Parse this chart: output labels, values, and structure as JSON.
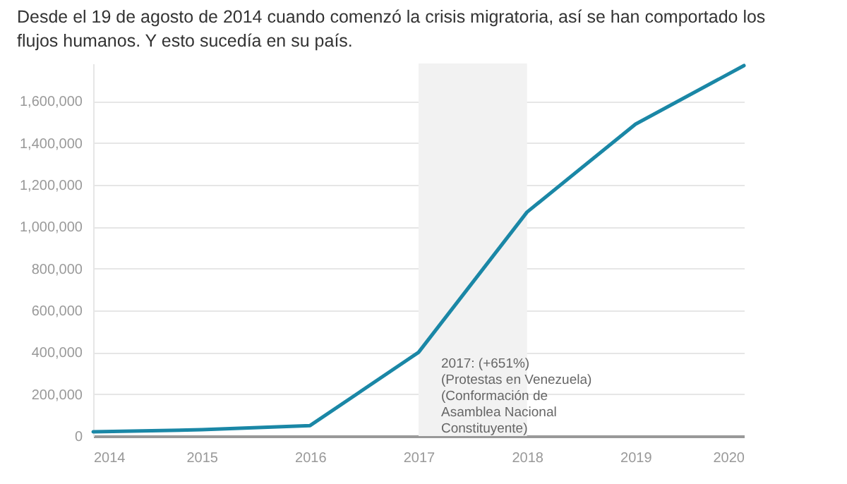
{
  "chart_data": {
    "type": "line",
    "title": "Desde el 19 de agosto de 2014 cuando comenzó la crisis migratoria, así se han comportado los flujos humanos. Y esto sucedía en su país.",
    "x": [
      2014,
      2015,
      2016,
      2017,
      2018,
      2019,
      2020
    ],
    "series": [
      {
        "color": "#1a87a6",
        "values": [
          20000,
          30000,
          50000,
          400000,
          1070000,
          1490000,
          1770000
        ]
      }
    ],
    "xlim": [
      2014,
      2020
    ],
    "xticks": [
      2014,
      2015,
      2016,
      2017,
      2018,
      2019,
      2020
    ],
    "ylim": [
      0,
      1780000
    ],
    "yticks": [
      0,
      {
        "value": 200000,
        "label": "200,000"
      },
      {
        "value": 400000,
        "label": "400,000"
      },
      {
        "value": 600000,
        "label": "600,000"
      },
      {
        "value": 800000,
        "label": "800,000"
      },
      {
        "value": 1000000,
        "label": "1,000,000"
      },
      {
        "value": 1200000,
        "label": "1,200,000"
      },
      {
        "value": 1400000,
        "label": "1,400,000"
      },
      {
        "value": 1600000,
        "label": "1,600,000"
      }
    ],
    "grid": "y",
    "marker": "none",
    "line_style": "solid",
    "bands": [
      {
        "axis": "x",
        "from": 2017,
        "to": 2018,
        "color": "#f2f2f2"
      }
    ],
    "annotations": [
      {
        "text": "2017: (+651%)\n(Protestas en Venezuela)\n(Conformación de\n Asamblea Nacional\nConstituyente)",
        "x": 2017,
        "y": 380000
      }
    ]
  }
}
